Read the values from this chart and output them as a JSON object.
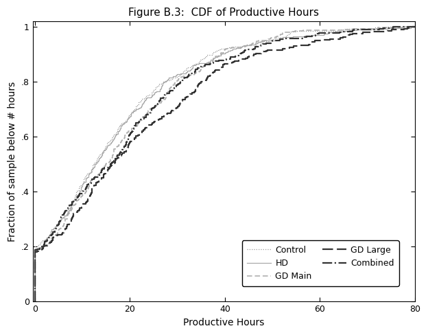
{
  "title": "Figure B.3:  CDF of Productive Hours",
  "xlabel": "Productive Hours",
  "ylabel": "Fraction of sample below # hours",
  "xlim": [
    -0.5,
    80
  ],
  "ylim": [
    0,
    1.02
  ],
  "xticks": [
    0,
    20,
    40,
    60,
    80
  ],
  "yticks": [
    0,
    0.2,
    0.4,
    0.6,
    0.8,
    1.0
  ],
  "ytick_labels": [
    "0",
    ".2",
    ".4",
    ".6",
    ".8",
    "1"
  ],
  "background_color": "#ffffff",
  "title_fontsize": 11,
  "axis_fontsize": 10,
  "tick_fontsize": 9,
  "ctrl_color": "#999999",
  "hd_color": "#aaaaaa",
  "gdm_color": "#aaaaaa",
  "gdl_color": "#333333",
  "comb_color": "#333333"
}
